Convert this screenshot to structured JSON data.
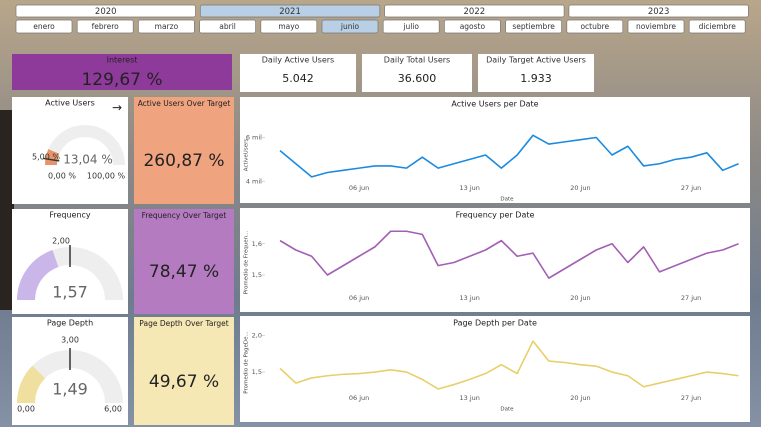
{
  "years": {
    "options": [
      "2020",
      "2021",
      "2022",
      "2023"
    ],
    "selected": 1
  },
  "months": {
    "options": [
      "enero",
      "febrero",
      "marzo",
      "abril",
      "mayo",
      "junio",
      "julio",
      "agosto",
      "septiembre",
      "octubre",
      "noviembre",
      "diciembre"
    ],
    "selected": 5
  },
  "cards": [
    {
      "title": "Interest",
      "value": "129,67 %"
    },
    {
      "title": "Daily Active Users",
      "value": "5.042"
    },
    {
      "title": "Daily Total Users",
      "value": "36.600"
    },
    {
      "title": "Daily Target Active Users",
      "value": "1.933"
    }
  ],
  "over_target": [
    {
      "title": "Active Users Over Target",
      "value": "260,87 %",
      "color": "#f0a37f"
    },
    {
      "title": "Frequency Over Target",
      "value": "78,47 %",
      "color": "#b57bc0"
    },
    {
      "title": "Page Depth Over Target",
      "value": "49,67 %",
      "color": "#f6e8b4"
    }
  ],
  "gauges": [
    {
      "title": "Active Users",
      "min": 0,
      "min_label": "0,00 %",
      "max": 100,
      "max_label": "100,00 %",
      "value": 13.04,
      "value_label": "13,04 %",
      "target": 5,
      "target_label": "5,00 %",
      "color": "#e8946a"
    },
    {
      "title": "Frequency",
      "min": 0,
      "max": 4,
      "value": 1.57,
      "value_label": "1,57",
      "target": 2,
      "target_label": "2,00",
      "color": "#cbb6ea"
    },
    {
      "title": "Page Depth",
      "min": 0,
      "min_label": "0,00",
      "max": 6,
      "max_label": "6,00",
      "value": 1.49,
      "value_label": "1,49",
      "target": 3,
      "target_label": "3,00",
      "color": "#efe0a0"
    }
  ],
  "chart_data": [
    {
      "type": "line",
      "title": "Active Users per Date",
      "x_label": "Date",
      "y_label": "ActiveUsers",
      "color": "#1c8ae0",
      "x": [
        1,
        2,
        3,
        4,
        5,
        6,
        7,
        8,
        9,
        10,
        11,
        12,
        13,
        14,
        15,
        16,
        17,
        18,
        19,
        20,
        21,
        22,
        23,
        24,
        25,
        26,
        27,
        28,
        29,
        30
      ],
      "values": [
        5400,
        4800,
        4200,
        4400,
        4500,
        4600,
        4700,
        4700,
        4600,
        5100,
        4600,
        4800,
        5000,
        5200,
        4600,
        5200,
        6100,
        5700,
        5800,
        5900,
        6000,
        5200,
        5600,
        4700,
        4800,
        5000,
        5100,
        5300,
        4500,
        4800
      ],
      "xlim": [
        0.05,
        30.6
      ],
      "xticks": [
        {
          "value": 6,
          "label": "06 jun"
        },
        {
          "value": 13,
          "label": "13 jun"
        },
        {
          "value": 20,
          "label": "20 jun"
        },
        {
          "value": 27,
          "label": "27 jun"
        }
      ],
      "ylim": [
        3600,
        6800
      ],
      "yticks": [
        {
          "value": 4000,
          "label": "4 mil"
        },
        {
          "value": 6000,
          "label": "6 mil"
        }
      ]
    },
    {
      "type": "line",
      "title": "Frequency per Date",
      "y_label": "Promedio de Frequen...",
      "color": "#a25fb3",
      "x": [
        1,
        2,
        3,
        4,
        5,
        6,
        7,
        8,
        9,
        10,
        11,
        12,
        13,
        14,
        15,
        16,
        17,
        18,
        19,
        20,
        21,
        22,
        23,
        24,
        25,
        26,
        27,
        28,
        29,
        30
      ],
      "values": [
        1.61,
        1.58,
        1.56,
        1.5,
        1.53,
        1.56,
        1.59,
        1.64,
        1.64,
        1.63,
        1.53,
        1.54,
        1.56,
        1.58,
        1.61,
        1.56,
        1.57,
        1.49,
        1.52,
        1.55,
        1.58,
        1.6,
        1.54,
        1.59,
        1.51,
        1.53,
        1.55,
        1.57,
        1.58,
        1.6
      ],
      "xlim": [
        0.05,
        30.6
      ],
      "xticks": [
        {
          "value": 6,
          "label": "06 jun"
        },
        {
          "value": 13,
          "label": "13 jun"
        },
        {
          "value": 20,
          "label": "20 jun"
        },
        {
          "value": 27,
          "label": "27 jun"
        }
      ],
      "ylim": [
        1.42,
        1.66
      ],
      "yticks": [
        {
          "value": 1.5,
          "label": "1,5"
        },
        {
          "value": 1.6,
          "label": "1,6"
        }
      ]
    },
    {
      "type": "line",
      "title": "Page Depth per Date",
      "x_label": "Date",
      "y_label": "Promedio de PageDe...",
      "color": "#e8cf6a",
      "x": [
        1,
        2,
        3,
        4,
        5,
        6,
        7,
        8,
        9,
        10,
        11,
        12,
        13,
        14,
        15,
        16,
        17,
        18,
        19,
        20,
        21,
        22,
        23,
        24,
        25,
        26,
        27,
        28,
        29,
        30
      ],
      "values": [
        1.55,
        1.35,
        1.42,
        1.45,
        1.47,
        1.48,
        1.5,
        1.53,
        1.5,
        1.4,
        1.27,
        1.33,
        1.4,
        1.48,
        1.6,
        1.48,
        1.92,
        1.65,
        1.63,
        1.6,
        1.58,
        1.5,
        1.45,
        1.3,
        1.35,
        1.4,
        1.45,
        1.5,
        1.48,
        1.45
      ],
      "xlim": [
        0.05,
        30.6
      ],
      "xticks": [
        {
          "value": 6,
          "label": "06 jun"
        },
        {
          "value": 13,
          "label": "13 jun"
        },
        {
          "value": 20,
          "label": "20 jun"
        },
        {
          "value": 27,
          "label": "27 jun"
        }
      ],
      "ylim": [
        1.12,
        2.14
      ],
      "yticks": [
        {
          "value": 1.5,
          "label": "1,5"
        },
        {
          "value": 2.0,
          "label": "2,0"
        }
      ]
    }
  ]
}
